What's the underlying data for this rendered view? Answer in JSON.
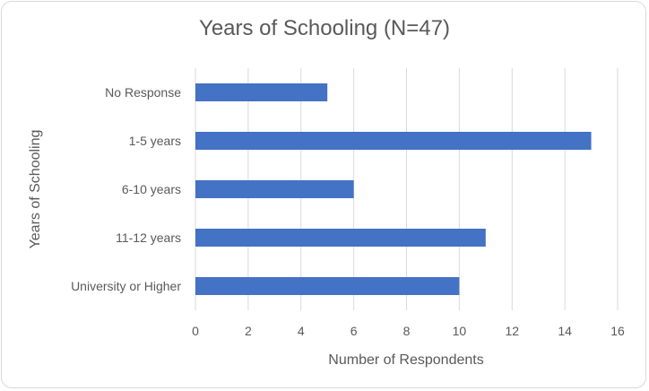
{
  "chart_data": {
    "type": "bar",
    "orientation": "horizontal",
    "title": "Years of Schooling (N=47)",
    "xlabel": "Number of Respondents",
    "ylabel": "Years of Schooling",
    "categories": [
      "No Response",
      "1-5 years",
      "6-10 years",
      "11-12 years",
      "University or Higher"
    ],
    "values": [
      5,
      15,
      6,
      11,
      10
    ],
    "xlim": [
      0,
      16
    ],
    "xticks": [
      0,
      2,
      4,
      6,
      8,
      10,
      12,
      14,
      16
    ],
    "grid": "vertical",
    "bar_color": "#4472c4",
    "grid_color": "#d9d9d9",
    "text_color": "#595959"
  }
}
